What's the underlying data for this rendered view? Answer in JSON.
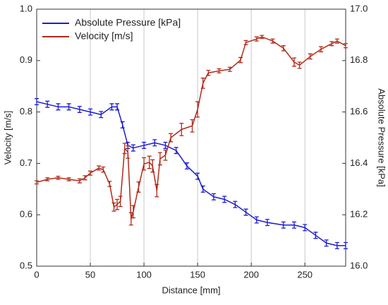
{
  "chart_data": {
    "type": "line",
    "xlabel": "Distance [mm]",
    "ylabel": "Velocity [m/s]",
    "y2label": "Absolute Pressure [kPa]",
    "xlim": [
      0,
      288
    ],
    "xticks": [
      0,
      50,
      100,
      150,
      200,
      250
    ],
    "ylim": [
      0.5,
      1.0
    ],
    "yticks": [
      0.5,
      0.6,
      0.7,
      0.8,
      0.9,
      {
        "value": 1.0,
        "label": "1.0"
      }
    ],
    "y2lim": [
      16.0,
      17.0
    ],
    "y2ticks": [
      {
        "value": 16.0,
        "label": "16.0"
      },
      16.2,
      16.4,
      16.6,
      16.8,
      {
        "value": 17.0,
        "label": "17.0"
      }
    ],
    "grid": true,
    "legend": "upper left",
    "series": [
      {
        "name": "Absolute Pressure [kPa]",
        "color": "#1c1cd2",
        "axis": "y2",
        "x": [
          0,
          10,
          20,
          30,
          40,
          50,
          60,
          70,
          75,
          80,
          85,
          90,
          100,
          110,
          120,
          130,
          140,
          150,
          155,
          165,
          175,
          185,
          195,
          205,
          215,
          230,
          240,
          250,
          260,
          270,
          280,
          288
        ],
        "values": [
          16.64,
          16.63,
          16.62,
          16.62,
          16.61,
          16.6,
          16.59,
          16.62,
          16.62,
          16.55,
          16.47,
          16.46,
          16.47,
          16.48,
          16.47,
          16.45,
          16.39,
          16.35,
          16.3,
          16.27,
          16.26,
          16.24,
          16.21,
          16.18,
          16.17,
          16.16,
          16.16,
          16.15,
          16.12,
          16.09,
          16.08,
          16.08
        ],
        "errors": [
          0.012,
          0.012,
          0.012,
          0.012,
          0.012,
          0.012,
          0.012,
          0.012,
          0.012,
          0.012,
          0.012,
          0.012,
          0.012,
          0.012,
          0.012,
          0.012,
          0.012,
          0.012,
          0.012,
          0.012,
          0.012,
          0.012,
          0.012,
          0.012,
          0.012,
          0.012,
          0.012,
          0.012,
          0.012,
          0.012,
          0.012,
          0.012
        ]
      },
      {
        "name": "Velocity [m/s]",
        "color": "#b02a1a",
        "x": [
          0,
          10,
          20,
          30,
          40,
          45,
          50,
          58,
          62,
          68,
          72,
          75,
          78,
          82,
          85,
          88,
          90,
          95,
          100,
          105,
          108,
          112,
          115,
          120,
          125,
          135,
          145,
          150,
          155,
          160,
          170,
          180,
          190,
          195,
          205,
          210,
          220,
          230,
          240,
          245,
          255,
          265,
          275,
          280,
          288
        ],
        "values": [
          0.663,
          0.669,
          0.672,
          0.669,
          0.666,
          0.672,
          0.681,
          0.691,
          0.688,
          0.66,
          0.615,
          0.62,
          0.626,
          0.729,
          0.722,
          0.592,
          0.606,
          0.654,
          0.699,
          0.702,
          0.695,
          0.647,
          0.709,
          0.716,
          0.75,
          0.766,
          0.773,
          0.805,
          0.856,
          0.876,
          0.88,
          0.883,
          0.901,
          0.935,
          0.942,
          0.946,
          0.938,
          0.924,
          0.897,
          0.891,
          0.908,
          0.922,
          0.933,
          0.938,
          0.929
        ],
        "errors": [
          0.003,
          0.003,
          0.003,
          0.003,
          0.004,
          0.004,
          0.004,
          0.004,
          0.005,
          0.005,
          0.008,
          0.01,
          0.01,
          0.01,
          0.012,
          0.012,
          0.012,
          0.01,
          0.012,
          0.012,
          0.012,
          0.012,
          0.012,
          0.01,
          0.008,
          0.012,
          0.012,
          0.015,
          0.01,
          0.005,
          0.004,
          0.004,
          0.005,
          0.004,
          0.004,
          0.003,
          0.004,
          0.005,
          0.008,
          0.006,
          0.005,
          0.005,
          0.004,
          0.004,
          0.004
        ]
      }
    ]
  }
}
